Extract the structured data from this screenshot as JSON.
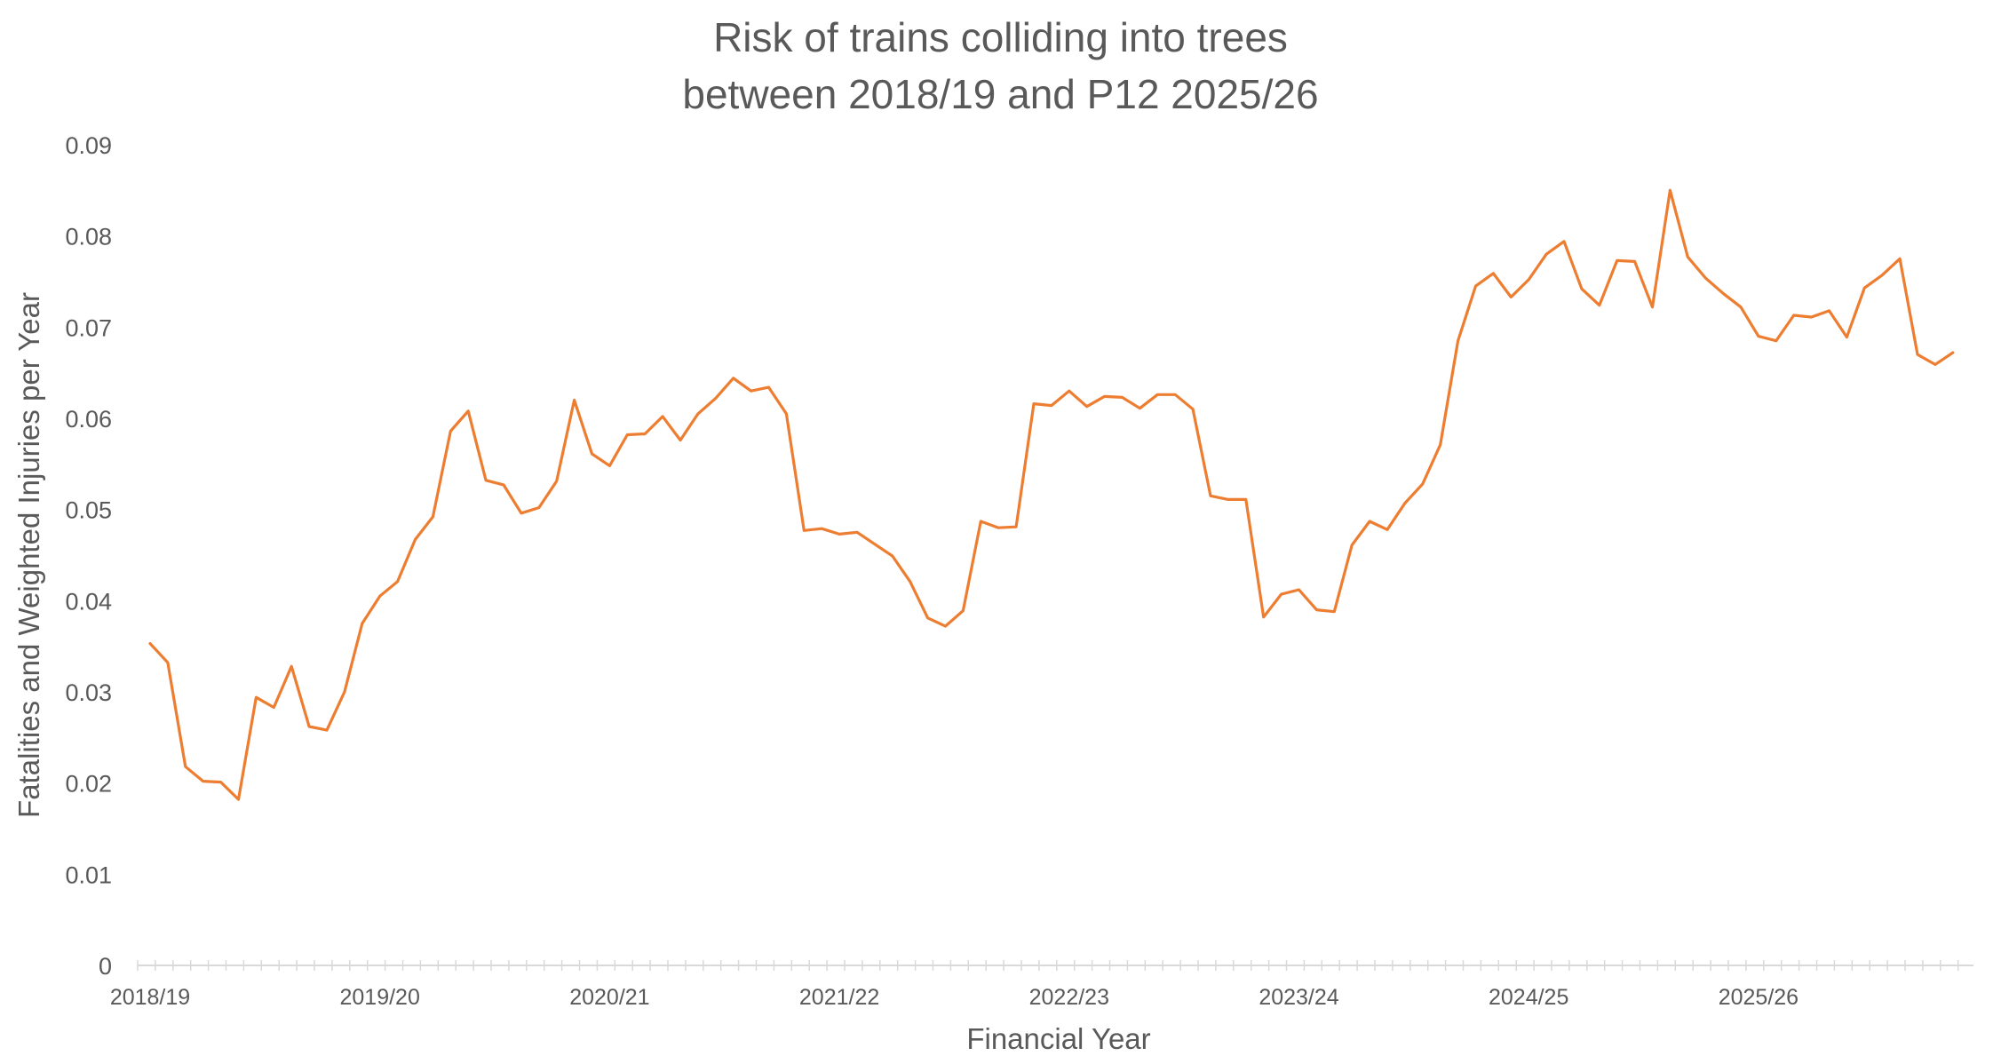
{
  "chart_data": {
    "type": "line",
    "title_lines": [
      "Risk of trains colliding into trees",
      "between 2018/19 and P12 2025/26"
    ],
    "xlabel": "Financial Year",
    "ylabel": "Fatalities and Weighted Injuries per Year",
    "ylim": [
      0,
      0.09
    ],
    "yticks": [
      "0",
      "0.01",
      "0.02",
      "0.03",
      "0.04",
      "0.05",
      "0.06",
      "0.07",
      "0.08",
      "0.09"
    ],
    "xtick_labels": [
      "2018/19",
      "2019/20",
      "2020/21",
      "2021/22",
      "2022/23",
      "2023/24",
      "2024/25",
      "2025/26"
    ],
    "periods_per_year": 13,
    "grid": false,
    "legend": "none",
    "series": [
      {
        "color": "#ED7D31",
        "values": [
          0.0353,
          0.0332,
          0.0218,
          0.0202,
          0.0201,
          0.0182,
          0.0294,
          0.0283,
          0.0328,
          0.0262,
          0.0258,
          0.03,
          0.0375,
          0.0405,
          0.0421,
          0.0467,
          0.0492,
          0.0586,
          0.0608,
          0.0532,
          0.0527,
          0.0496,
          0.0502,
          0.0531,
          0.062,
          0.0561,
          0.0548,
          0.0582,
          0.0583,
          0.0602,
          0.0576,
          0.0605,
          0.0622,
          0.0644,
          0.063,
          0.0634,
          0.0605,
          0.0477,
          0.0479,
          0.0473,
          0.0475,
          0.0462,
          0.0449,
          0.0421,
          0.0381,
          0.0372,
          0.0389,
          0.0487,
          0.048,
          0.0481,
          0.0616,
          0.0614,
          0.063,
          0.0613,
          0.0624,
          0.0623,
          0.0611,
          0.0626,
          0.0626,
          0.061,
          0.0515,
          0.0511,
          0.0511,
          0.0382,
          0.0407,
          0.0412,
          0.039,
          0.0388,
          0.0461,
          0.0487,
          0.0478,
          0.0507,
          0.0528,
          0.0571,
          0.0685,
          0.0745,
          0.0759,
          0.0733,
          0.0752,
          0.078,
          0.0794,
          0.0742,
          0.0724,
          0.0773,
          0.0772,
          0.0722,
          0.085,
          0.0777,
          0.0754,
          0.0737,
          0.0722,
          0.069,
          0.0685,
          0.0713,
          0.0711,
          0.0718,
          0.0689,
          0.0743,
          0.0757,
          0.0775,
          0.067,
          0.0659,
          0.0672
        ]
      }
    ]
  }
}
